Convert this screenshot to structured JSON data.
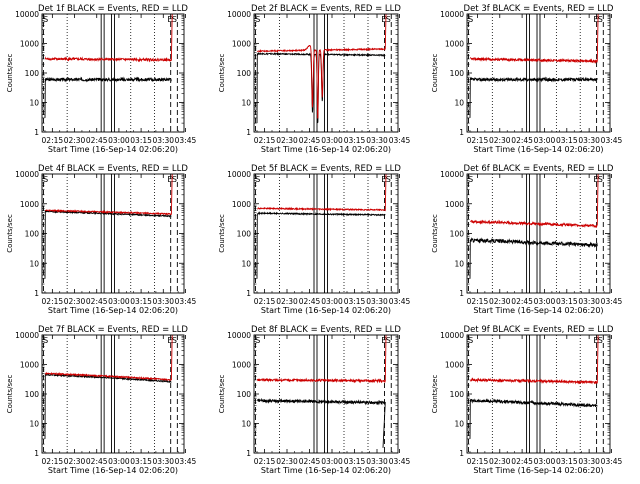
{
  "figure": {
    "background": "#ffffff",
    "colors": {
      "events": "#000000",
      "lld": "#cc0000",
      "frame": "#000000"
    }
  },
  "chart_data": [
    {
      "id": 0,
      "type": "line",
      "title": "Det 1f BLACK = Events, RED = LLD",
      "xlabel": "Start Time (16-Sep-14 02:06:20)",
      "ylabel": "Counts/sec",
      "yscale": "log",
      "ylim": [
        1,
        10000
      ],
      "yticks": [
        "1",
        "10",
        "100",
        "1000",
        "10000"
      ],
      "xticks": [
        "02:15",
        "02:30",
        "02:45",
        "03:00",
        "03:15",
        "03:30",
        "03:45"
      ],
      "xlim_minutes": [
        8,
        104
      ],
      "xtick_minutes": [
        15,
        30,
        45,
        60,
        75,
        90,
        105
      ],
      "markers": [
        {
          "label": "S",
          "minute": 10.5
        },
        {
          "label": "E",
          "minute": 94.5
        },
        {
          "label": "S",
          "minute": 97.5
        }
      ],
      "shape": "flat",
      "series": [
        {
          "name": "BLACK = Events",
          "color": "#000000",
          "y_start": 60,
          "y_end": 60,
          "noise": 0.05,
          "low_minute": 10,
          "low_value": 3
        },
        {
          "name": "RED = LLD",
          "color": "#cc0000",
          "y_start": 300,
          "y_end": 280,
          "noise": 0.04,
          "high_minute": 96,
          "high_value": 10000
        }
      ]
    },
    {
      "id": 1,
      "type": "line",
      "title": "Det 2f BLACK = Events, RED = LLD",
      "xlabel": "Start Time (16-Sep-14 02:06:20)",
      "ylabel": "Counts/sec",
      "yscale": "log",
      "ylim": [
        1,
        10000
      ],
      "yticks": [
        "1",
        "10",
        "100",
        "1000",
        "10000"
      ],
      "xticks": [
        "02:15",
        "02:30",
        "02:45",
        "03:00",
        "03:15",
        "03:30",
        "03:45"
      ],
      "xlim_minutes": [
        8,
        104
      ],
      "xtick_minutes": [
        15,
        30,
        45,
        60,
        75,
        90,
        105
      ],
      "markers": [
        {
          "label": "S",
          "minute": 10.5
        },
        {
          "label": "E",
          "minute": 94.5
        },
        {
          "label": "S",
          "minute": 97.5
        }
      ],
      "shape": "dips",
      "series": [
        {
          "name": "BLACK = Events",
          "color": "#000000",
          "y_start": 450,
          "y_end": 400,
          "noise": 0.02,
          "low_minute": 10,
          "low_value": 2
        },
        {
          "name": "RED = LLD",
          "color": "#cc0000",
          "y_start": 550,
          "y_end": 650,
          "noise": 0.02,
          "high_minute": 96,
          "high_value": 10000
        }
      ]
    },
    {
      "id": 2,
      "type": "line",
      "title": "Det 3f BLACK = Events, RED = LLD",
      "xlabel": "Start Time (16-Sep-14 02:06:20)",
      "ylabel": "Counts/sec",
      "yscale": "log",
      "ylim": [
        1,
        10000
      ],
      "yticks": [
        "1",
        "10",
        "100",
        "1000",
        "10000"
      ],
      "xticks": [
        "02:15",
        "02:30",
        "02:45",
        "03:00",
        "03:15",
        "03:30",
        "03:45"
      ],
      "xlim_minutes": [
        8,
        104
      ],
      "xtick_minutes": [
        15,
        30,
        45,
        60,
        75,
        90,
        105
      ],
      "markers": [
        {
          "label": "S",
          "minute": 10.5
        },
        {
          "label": "E",
          "minute": 94.5
        },
        {
          "label": "S",
          "minute": 97.5
        }
      ],
      "shape": "flat",
      "series": [
        {
          "name": "BLACK = Events",
          "color": "#000000",
          "y_start": 60,
          "y_end": 60,
          "noise": 0.05,
          "low_minute": 10,
          "low_value": 3
        },
        {
          "name": "RED = LLD",
          "color": "#cc0000",
          "y_start": 300,
          "y_end": 250,
          "noise": 0.04,
          "high_minute": 96,
          "high_value": 10000
        }
      ]
    },
    {
      "id": 3,
      "type": "line",
      "title": "Det 4f BLACK = Events, RED = LLD",
      "xlabel": "Start Time (16-Sep-14 02:06:20)",
      "ylabel": "Counts/sec",
      "yscale": "log",
      "ylim": [
        1,
        10000
      ],
      "yticks": [
        "1",
        "10",
        "100",
        "1000",
        "10000"
      ],
      "xticks": [
        "02:15",
        "02:30",
        "02:45",
        "03:00",
        "03:15",
        "03:30",
        "03:45"
      ],
      "xlim_minutes": [
        8,
        104
      ],
      "xtick_minutes": [
        15,
        30,
        45,
        60,
        75,
        90,
        105
      ],
      "markers": [
        {
          "label": "S",
          "minute": 10.5
        },
        {
          "label": "E",
          "minute": 94.5
        },
        {
          "label": "S",
          "minute": 97.5
        }
      ],
      "shape": "overlap",
      "series": [
        {
          "name": "BLACK = Events",
          "color": "#000000",
          "y_start": 550,
          "y_end": 380,
          "noise": 0.02,
          "low_minute": 10,
          "low_value": 3
        },
        {
          "name": "RED = LLD",
          "color": "#cc0000",
          "y_start": 600,
          "y_end": 450,
          "noise": 0.02,
          "high_minute": 96,
          "high_value": 10000
        }
      ]
    },
    {
      "id": 4,
      "type": "line",
      "title": "Det 5f BLACK = Events, RED = LLD",
      "xlabel": "Start Time (16-Sep-14 02:06:20)",
      "ylabel": "Counts/sec",
      "yscale": "log",
      "ylim": [
        1,
        10000
      ],
      "yticks": [
        "1",
        "10",
        "100",
        "1000",
        "10000"
      ],
      "xticks": [
        "02:15",
        "02:30",
        "02:45",
        "03:00",
        "03:15",
        "03:30",
        "03:45"
      ],
      "xlim_minutes": [
        8,
        104
      ],
      "xtick_minutes": [
        15,
        30,
        45,
        60,
        75,
        90,
        105
      ],
      "markers": [
        {
          "label": "S",
          "minute": 10.5
        },
        {
          "label": "E",
          "minute": 94.5
        },
        {
          "label": "S",
          "minute": 97.5
        }
      ],
      "shape": "overlap",
      "series": [
        {
          "name": "BLACK = Events",
          "color": "#000000",
          "y_start": 480,
          "y_end": 420,
          "noise": 0.02,
          "low_minute": 10,
          "low_value": 3
        },
        {
          "name": "RED = LLD",
          "color": "#cc0000",
          "y_start": 700,
          "y_end": 620,
          "noise": 0.02,
          "high_minute": 96,
          "high_value": 10000
        }
      ]
    },
    {
      "id": 5,
      "type": "line",
      "title": "Det 6f BLACK = Events, RED = LLD",
      "xlabel": "Start Time (16-Sep-14 02:06:20)",
      "ylabel": "Counts/sec",
      "yscale": "log",
      "ylim": [
        1,
        10000
      ],
      "yticks": [
        "1",
        "10",
        "100",
        "1000",
        "10000"
      ],
      "xticks": [
        "02:15",
        "02:30",
        "02:45",
        "03:00",
        "03:15",
        "03:30",
        "03:45"
      ],
      "xlim_minutes": [
        8,
        104
      ],
      "xtick_minutes": [
        15,
        30,
        45,
        60,
        75,
        90,
        105
      ],
      "markers": [
        {
          "label": "S",
          "minute": 10.5
        },
        {
          "label": "E",
          "minute": 94.5
        },
        {
          "label": "S",
          "minute": 97.5
        }
      ],
      "shape": "flat",
      "series": [
        {
          "name": "BLACK = Events",
          "color": "#000000",
          "y_start": 60,
          "y_end": 40,
          "noise": 0.06,
          "low_minute": 10,
          "low_value": 3
        },
        {
          "name": "RED = LLD",
          "color": "#cc0000",
          "y_start": 250,
          "y_end": 180,
          "noise": 0.04,
          "high_minute": 96,
          "high_value": 10000
        }
      ]
    },
    {
      "id": 6,
      "type": "line",
      "title": "Det 7f BLACK = Events, RED = LLD",
      "xlabel": "Start Time (16-Sep-14 02:06:20)",
      "ylabel": "Counts/sec",
      "yscale": "log",
      "ylim": [
        1,
        10000
      ],
      "yticks": [
        "1",
        "10",
        "100",
        "1000",
        "10000"
      ],
      "xticks": [
        "02:15",
        "02:30",
        "02:45",
        "03:00",
        "03:15",
        "03:30",
        "03:45"
      ],
      "xlim_minutes": [
        8,
        104
      ],
      "xtick_minutes": [
        15,
        30,
        45,
        60,
        75,
        90,
        105
      ],
      "markers": [
        {
          "label": "S",
          "minute": 10.5
        },
        {
          "label": "E",
          "minute": 94.5
        },
        {
          "label": "S",
          "minute": 97.5
        }
      ],
      "shape": "overlap",
      "series": [
        {
          "name": "BLACK = Events",
          "color": "#000000",
          "y_start": 450,
          "y_end": 260,
          "noise": 0.02,
          "low_minute": 10,
          "low_value": 3
        },
        {
          "name": "RED = LLD",
          "color": "#cc0000",
          "y_start": 500,
          "y_end": 300,
          "noise": 0.02,
          "high_minute": 96,
          "high_value": 10000
        }
      ]
    },
    {
      "id": 7,
      "type": "line",
      "title": "Det 8f BLACK = Events, RED = LLD",
      "xlabel": "Start Time (16-Sep-14 02:06:20)",
      "ylabel": "Counts/sec",
      "yscale": "log",
      "ylim": [
        1,
        10000
      ],
      "yticks": [
        "1",
        "10",
        "100",
        "1000",
        "10000"
      ],
      "xticks": [
        "02:15",
        "02:30",
        "02:45",
        "03:00",
        "03:15",
        "03:30",
        "03:45"
      ],
      "xlim_minutes": [
        8,
        104
      ],
      "xtick_minutes": [
        15,
        30,
        45,
        60,
        75,
        90,
        105
      ],
      "markers": [
        {
          "label": "S",
          "minute": 10.5
        },
        {
          "label": "E",
          "minute": 94.5
        },
        {
          "label": "S",
          "minute": 97.5
        }
      ],
      "shape": "flat",
      "series": [
        {
          "name": "BLACK = Events",
          "color": "#000000",
          "y_start": 60,
          "y_end": 50,
          "noise": 0.05,
          "low_minute": 94,
          "low_value": 1.5
        },
        {
          "name": "RED = LLD",
          "color": "#cc0000",
          "y_start": 300,
          "y_end": 280,
          "noise": 0.04,
          "high_minute": 96,
          "high_value": 10000
        }
      ]
    },
    {
      "id": 8,
      "type": "line",
      "title": "Det 9f BLACK = Events, RED = LLD",
      "xlabel": "Start Time (16-Sep-14 02:06:20)",
      "ylabel": "Counts/sec",
      "yscale": "log",
      "ylim": [
        1,
        10000
      ],
      "yticks": [
        "1",
        "10",
        "100",
        "1000",
        "10000"
      ],
      "xticks": [
        "02:15",
        "02:30",
        "02:45",
        "03:00",
        "03:15",
        "03:30",
        "03:45"
      ],
      "xlim_minutes": [
        8,
        104
      ],
      "xtick_minutes": [
        15,
        30,
        45,
        60,
        75,
        90,
        105
      ],
      "markers": [
        {
          "label": "S",
          "minute": 10.5
        },
        {
          "label": "E",
          "minute": 94.5
        },
        {
          "label": "S",
          "minute": 97.5
        }
      ],
      "shape": "flat",
      "series": [
        {
          "name": "BLACK = Events",
          "color": "#000000",
          "y_start": 60,
          "y_end": 40,
          "noise": 0.05,
          "low_minute": 10,
          "low_value": 3
        },
        {
          "name": "RED = LLD",
          "color": "#cc0000",
          "y_start": 300,
          "y_end": 250,
          "noise": 0.04,
          "high_minute": 96,
          "high_value": 10000
        }
      ]
    }
  ]
}
